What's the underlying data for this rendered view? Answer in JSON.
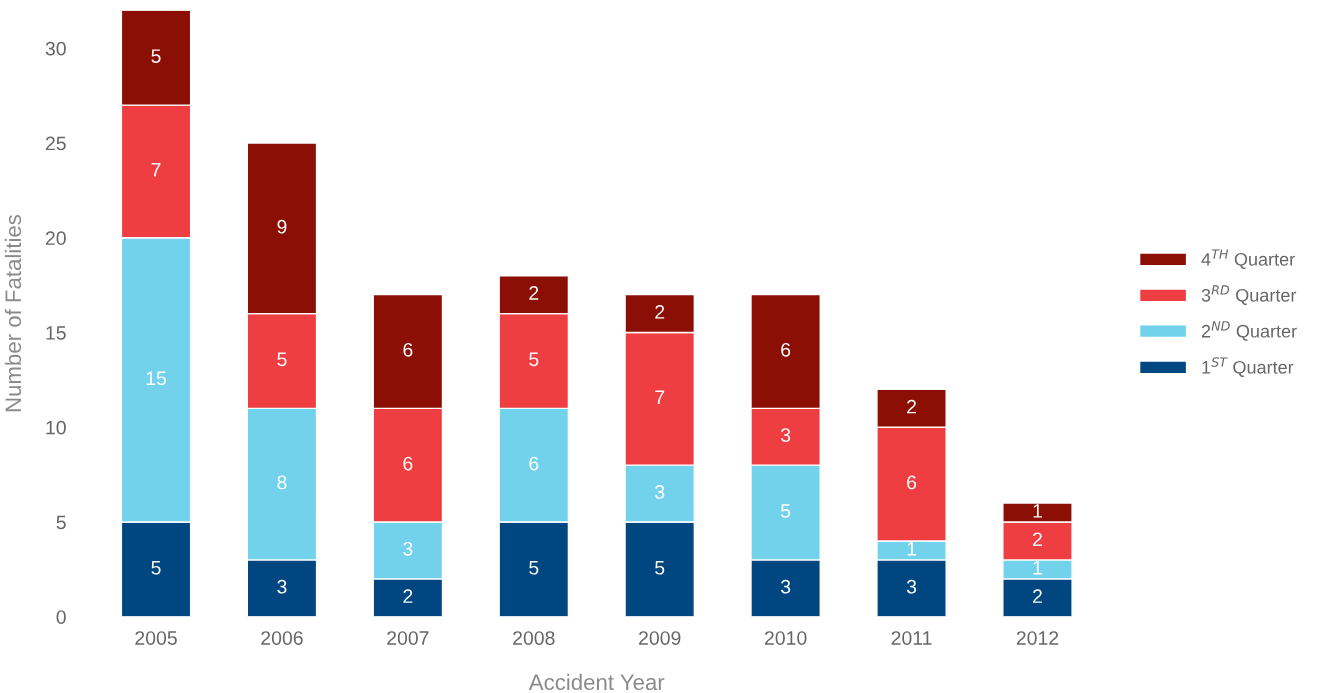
{
  "chart_data": {
    "type": "bar",
    "stacked": true,
    "xlabel": "Accident Year",
    "ylabel": "Number of Fatalities",
    "categories": [
      "2005",
      "2006",
      "2007",
      "2008",
      "2009",
      "2010",
      "2011",
      "2012"
    ],
    "series": [
      {
        "name": "1$^{ST}$ Quarter",
        "color": "#004680",
        "values": [
          5,
          3,
          2,
          5,
          5,
          3,
          3,
          2
        ]
      },
      {
        "name": "2$^{ND}$ Quarter",
        "color": "#72d2ec",
        "values": [
          15,
          8,
          3,
          6,
          3,
          5,
          1,
          1
        ]
      },
      {
        "name": "3$^{RD}$ Quarter",
        "color": "#ef3e42",
        "values": [
          7,
          5,
          6,
          5,
          7,
          3,
          6,
          2
        ]
      },
      {
        "name": "4$^{TH}$ Quarter",
        "color": "#8b0f04",
        "values": [
          5,
          9,
          6,
          2,
          2,
          6,
          2,
          1
        ]
      }
    ],
    "ylim": [
      0,
      32
    ],
    "yticks": [
      0,
      5,
      10,
      15,
      20,
      25,
      30
    ],
    "grid": false,
    "legend": "right",
    "data_labels": true
  }
}
